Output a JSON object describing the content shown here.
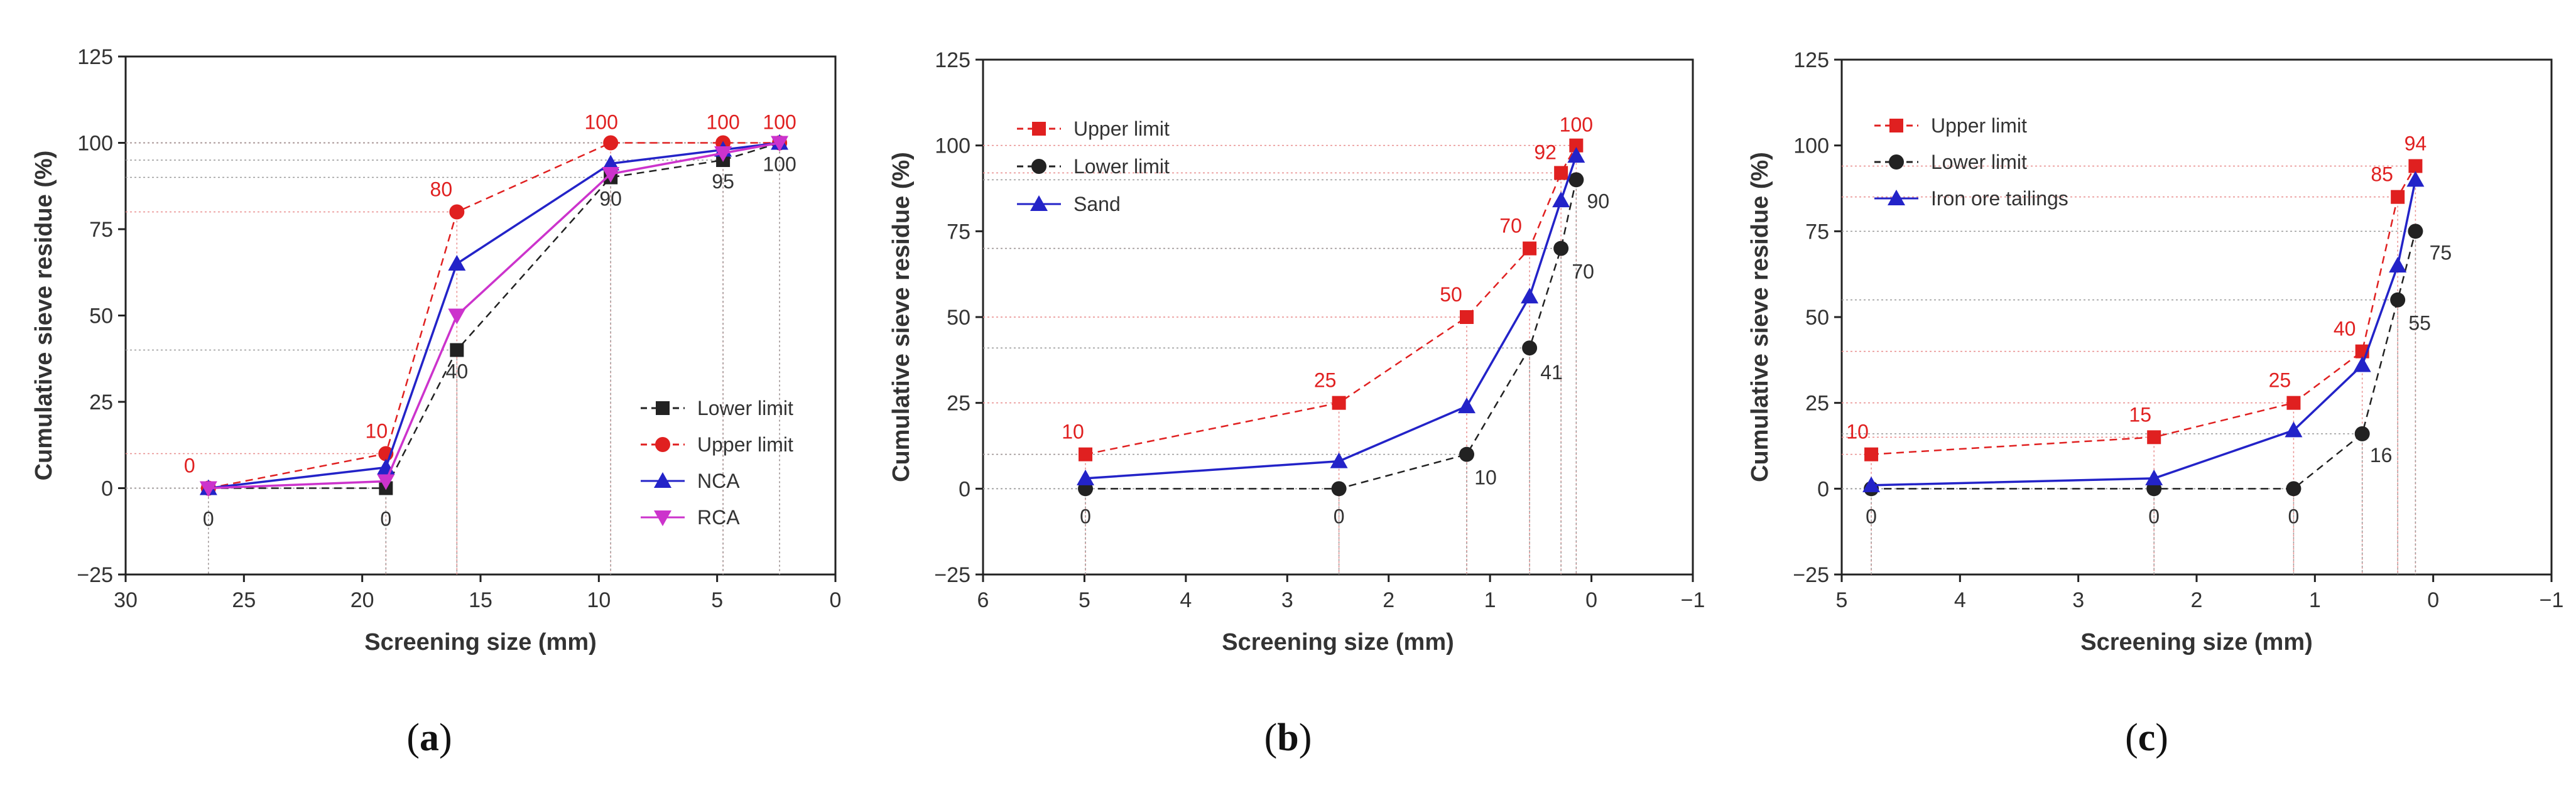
{
  "chart_data": [
    {
      "type": "line",
      "panel_label": "a",
      "xlabel": "Screening size (mm)",
      "ylabel": "Cumulative sieve residue (%)",
      "xlim": [
        30,
        0
      ],
      "ylim": [
        -25,
        125
      ],
      "x_ticks": [
        30,
        25,
        20,
        15,
        10,
        5,
        0
      ],
      "y_ticks": [
        -25,
        0,
        25,
        50,
        75,
        100,
        125
      ],
      "legend_position": "bottom-right",
      "x": [
        26.5,
        19,
        16,
        9.5,
        4.75,
        2.36
      ],
      "series": [
        {
          "name": "Lower limit",
          "color": "#222222",
          "style": "dashed",
          "marker": "square",
          "values": [
            0,
            0,
            40,
            90,
            95,
            100
          ]
        },
        {
          "name": "Upper limit",
          "color": "#e02020",
          "style": "dashed",
          "marker": "circle",
          "values": [
            0,
            10,
            80,
            100,
            100,
            100
          ]
        },
        {
          "name": "NCA",
          "color": "#2323c8",
          "style": "solid",
          "marker": "triangle-up",
          "values": [
            0,
            6,
            65,
            94,
            98,
            100
          ]
        },
        {
          "name": "RCA",
          "color": "#cc33cc",
          "style": "solid",
          "marker": "triangle-down",
          "values": [
            0,
            2,
            50,
            91,
            97,
            100
          ]
        }
      ],
      "upper_labels": [
        "0",
        "10",
        "80",
        "100",
        "100",
        "100"
      ],
      "lower_labels": [
        "0",
        "0",
        "40",
        "90",
        "95",
        "100"
      ]
    },
    {
      "type": "line",
      "panel_label": "b",
      "xlabel": "Screening size (mm)",
      "ylabel": "Cumulative sieve residue (%)",
      "xlim": [
        6,
        -1
      ],
      "ylim": [
        -25,
        125
      ],
      "x_ticks": [
        6,
        5,
        4,
        3,
        2,
        1,
        0,
        -1
      ],
      "y_ticks": [
        -25,
        0,
        25,
        50,
        75,
        100,
        125
      ],
      "legend_position": "top-left",
      "x": [
        4.99,
        2.49,
        1.23,
        0.61,
        0.3,
        0.15
      ],
      "series": [
        {
          "name": "Upper limit",
          "color": "#e02020",
          "style": "dashed",
          "marker": "square",
          "values": [
            10,
            25,
            50,
            70,
            92,
            100
          ]
        },
        {
          "name": "Lower limit",
          "color": "#222222",
          "style": "dashed",
          "marker": "circle",
          "values": [
            0,
            0,
            10,
            41,
            70,
            90
          ]
        },
        {
          "name": "Sand",
          "color": "#2323c8",
          "style": "solid",
          "marker": "triangle-up",
          "values": [
            3,
            8,
            24,
            56,
            84,
            97
          ]
        }
      ],
      "upper_labels": [
        "10",
        "25",
        "50",
        "70",
        "92",
        "100"
      ],
      "lower_labels": [
        "0",
        "0",
        "10",
        "41",
        "70",
        "90"
      ]
    },
    {
      "type": "line",
      "panel_label": "c",
      "xlabel": "Screening size (mm)",
      "ylabel": "Cumulative sieve residue (%)",
      "xlim": [
        5,
        -1
      ],
      "ylim": [
        -25,
        125
      ],
      "x_ticks": [
        5,
        4,
        3,
        2,
        1,
        0,
        -1
      ],
      "y_ticks": [
        -25,
        0,
        25,
        50,
        75,
        100,
        125
      ],
      "legend_position": "top-left",
      "x": [
        4.75,
        2.36,
        1.18,
        0.6,
        0.3,
        0.15
      ],
      "series": [
        {
          "name": "Upper limit",
          "color": "#e02020",
          "style": "dashed",
          "marker": "square",
          "values": [
            10,
            15,
            25,
            40,
            85,
            94
          ]
        },
        {
          "name": "Lower limit",
          "color": "#222222",
          "style": "dashed",
          "marker": "circle",
          "values": [
            0,
            0,
            0,
            16,
            55,
            75
          ]
        },
        {
          "name": "Iron ore tailings",
          "color": "#2323c8",
          "style": "solid",
          "marker": "triangle-up",
          "values": [
            1,
            3,
            17,
            36,
            65,
            90
          ]
        }
      ],
      "upper_labels": [
        "10",
        "15",
        "25",
        "40",
        "85",
        "94"
      ],
      "lower_labels": [
        "0",
        "0",
        "0",
        "16",
        "55",
        "75"
      ]
    }
  ]
}
